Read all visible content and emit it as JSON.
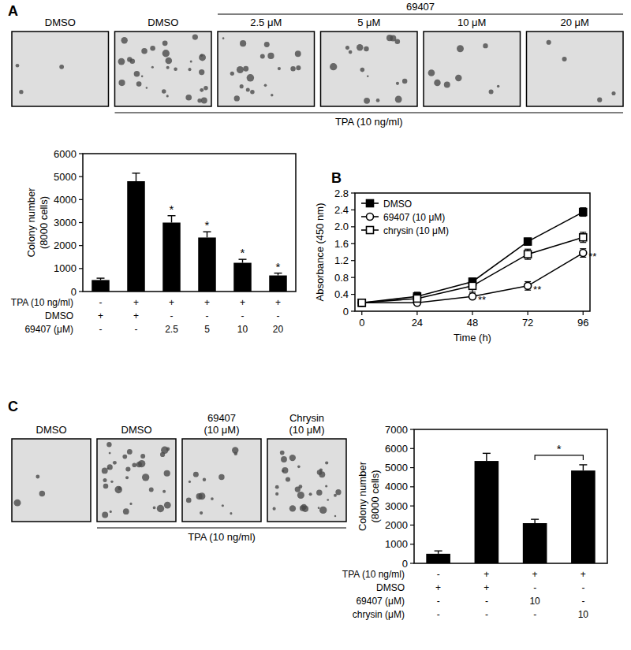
{
  "panel_labels": [
    "A",
    "B",
    "C"
  ],
  "image_panels": [
    {
      "header": "69407",
      "labels": [
        [
          "DMSO"
        ],
        [
          "DMSO"
        ],
        [
          "2.5 μM"
        ],
        [
          "5 μM"
        ],
        [
          "10 μM"
        ],
        [
          "20 μM"
        ]
      ],
      "treatment": "TPA (10 ng/ml)"
    },
    {
      "labels": [
        [
          "DMSO"
        ],
        [
          "DMSO"
        ],
        [
          "69407",
          "(10 μM)"
        ],
        [
          "Chrysin",
          "(10 μM)"
        ]
      ],
      "treatment": "TPA (10 ng/ml)"
    }
  ],
  "chart_data": [
    {
      "type": "bar",
      "ylabel": [
        "Colony number",
        "(8000 cells)"
      ],
      "values": [
        500,
        4800,
        3000,
        2350,
        1250,
        700
      ],
      "errors": [
        80,
        350,
        300,
        250,
        150,
        100
      ],
      "significance": [
        null,
        null,
        "*",
        "*",
        "*",
        "*"
      ],
      "color": "#000000",
      "ylim": [
        0,
        6000
      ],
      "yticks": [
        0,
        1000,
        2000,
        3000,
        4000,
        5000,
        6000
      ],
      "conditions": [
        {
          "label": "TPA (10 ng/ml)",
          "cells": [
            "-",
            "+",
            "+",
            "+",
            "+",
            "+"
          ]
        },
        {
          "label": "DMSO",
          "cells": [
            "+",
            "+",
            "-",
            "-",
            "-",
            "-"
          ]
        },
        {
          "label": "69407 (μM)",
          "cells": [
            "-",
            "-",
            "2.5",
            "5",
            "10",
            "20"
          ]
        }
      ]
    },
    {
      "type": "line",
      "xlabel": "Time (h)",
      "ylabel": "Absorbance (450 nm)",
      "x": [
        0,
        24,
        48,
        72,
        96
      ],
      "series": [
        {
          "name": "DMSO",
          "color": "#000000",
          "marker": "filled-square",
          "values": [
            0.2,
            0.35,
            0.7,
            1.65,
            2.35
          ],
          "errors": [
            0.03,
            0.05,
            0.08,
            0.08,
            0.1
          ]
        },
        {
          "name": "69407 (10 μM)",
          "color": "#000000",
          "marker": "open-circle",
          "values": [
            0.2,
            0.2,
            0.35,
            0.6,
            1.38
          ],
          "errors": [
            0.03,
            0.05,
            0.06,
            0.1,
            0.1
          ],
          "significance": [
            null,
            null,
            "**",
            "**",
            "**"
          ]
        },
        {
          "name": "chrysin (10 μM)",
          "color": "#000000",
          "marker": "open-square",
          "values": [
            0.2,
            0.3,
            0.6,
            1.35,
            1.75
          ],
          "errors": [
            0.03,
            0.15,
            0.15,
            0.12,
            0.12
          ]
        }
      ],
      "xlim": [
        -3,
        99
      ],
      "xticks": [
        0,
        24,
        48,
        72,
        96
      ],
      "ylim": [
        0,
        2.8
      ],
      "yticks": [
        0,
        0.4,
        0.8,
        1.2,
        1.6,
        {
          "value": 2,
          "label": "2.0"
        },
        2.4,
        2.8
      ],
      "legend": "upper left"
    },
    {
      "type": "bar",
      "ylabel": [
        "Colony number",
        "(8000 cells)"
      ],
      "values": [
        500,
        5350,
        2100,
        4850
      ],
      "errors": [
        150,
        400,
        200,
        300
      ],
      "color": "#000000",
      "ylim": [
        0,
        7000
      ],
      "yticks": [
        0,
        1000,
        2000,
        3000,
        4000,
        5000,
        6000,
        7000
      ],
      "brackets": [
        {
          "from": 2,
          "to": 3,
          "label": "*"
        }
      ],
      "conditions": [
        {
          "label": "TPA (10 ng/ml)",
          "cells": [
            "-",
            "+",
            "+",
            "+"
          ]
        },
        {
          "label": "DMSO",
          "cells": [
            "+",
            "+",
            "-",
            "-"
          ]
        },
        {
          "label": "69407 (μM)",
          "cells": [
            "-",
            "-",
            "10",
            "-"
          ]
        },
        {
          "label": "chrysin (μM)",
          "cells": [
            "-",
            "-",
            "-",
            "10"
          ]
        }
      ]
    }
  ]
}
